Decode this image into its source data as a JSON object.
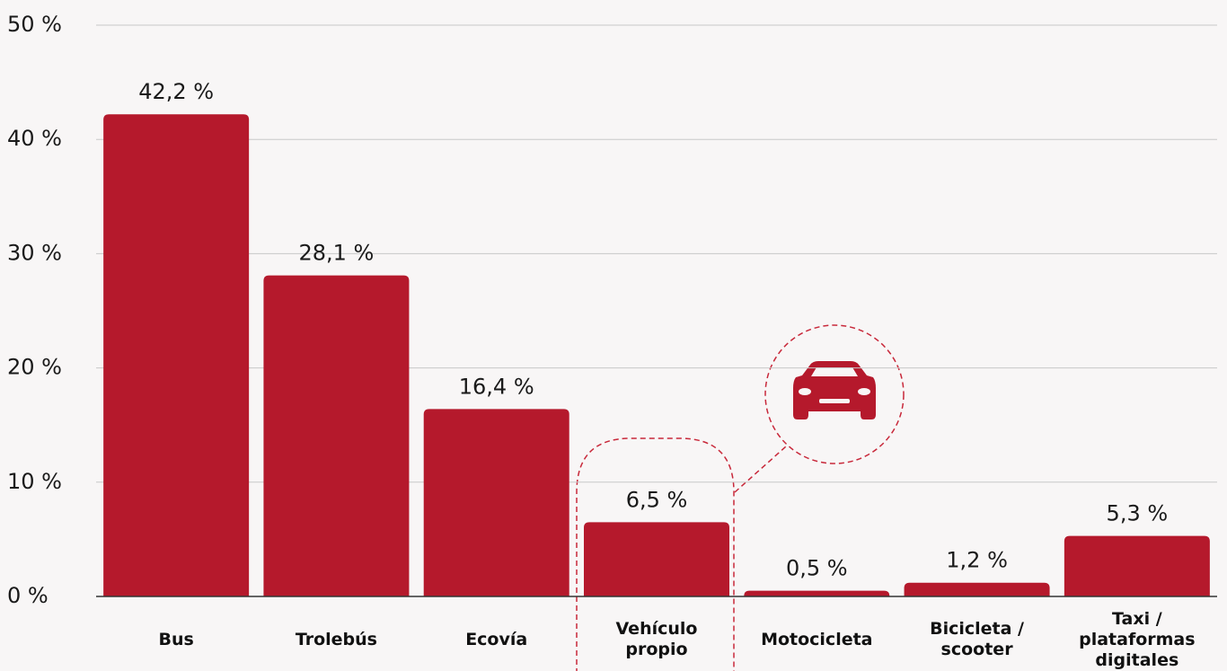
{
  "chart_data": {
    "type": "bar",
    "categories": [
      "Bus",
      "Trolebús",
      "Ecovía",
      "Vehículo propio",
      "Motocicleta",
      "Bicicleta / scooter",
      "Taxi / plataformas digitales"
    ],
    "values": [
      42.2,
      28.1,
      16.4,
      6.5,
      0.5,
      1.2,
      5.3
    ],
    "value_labels": [
      "42,2 %",
      "28,1 %",
      "16,4 %",
      "6,5 %",
      "0,5 %",
      "1,2 %",
      "5,3 %"
    ],
    "color": "#b5192c",
    "ylim": [
      0,
      50
    ],
    "yticks": [
      {
        "value": 0,
        "label": "0 %"
      },
      {
        "value": 10,
        "label": "10 %"
      },
      {
        "value": 20,
        "label": "20 %"
      },
      {
        "value": 30,
        "label": "30 %"
      },
      {
        "value": 40,
        "label": "40 %"
      },
      {
        "value": 50,
        "label": "50 %"
      }
    ],
    "grid": true
  }
}
